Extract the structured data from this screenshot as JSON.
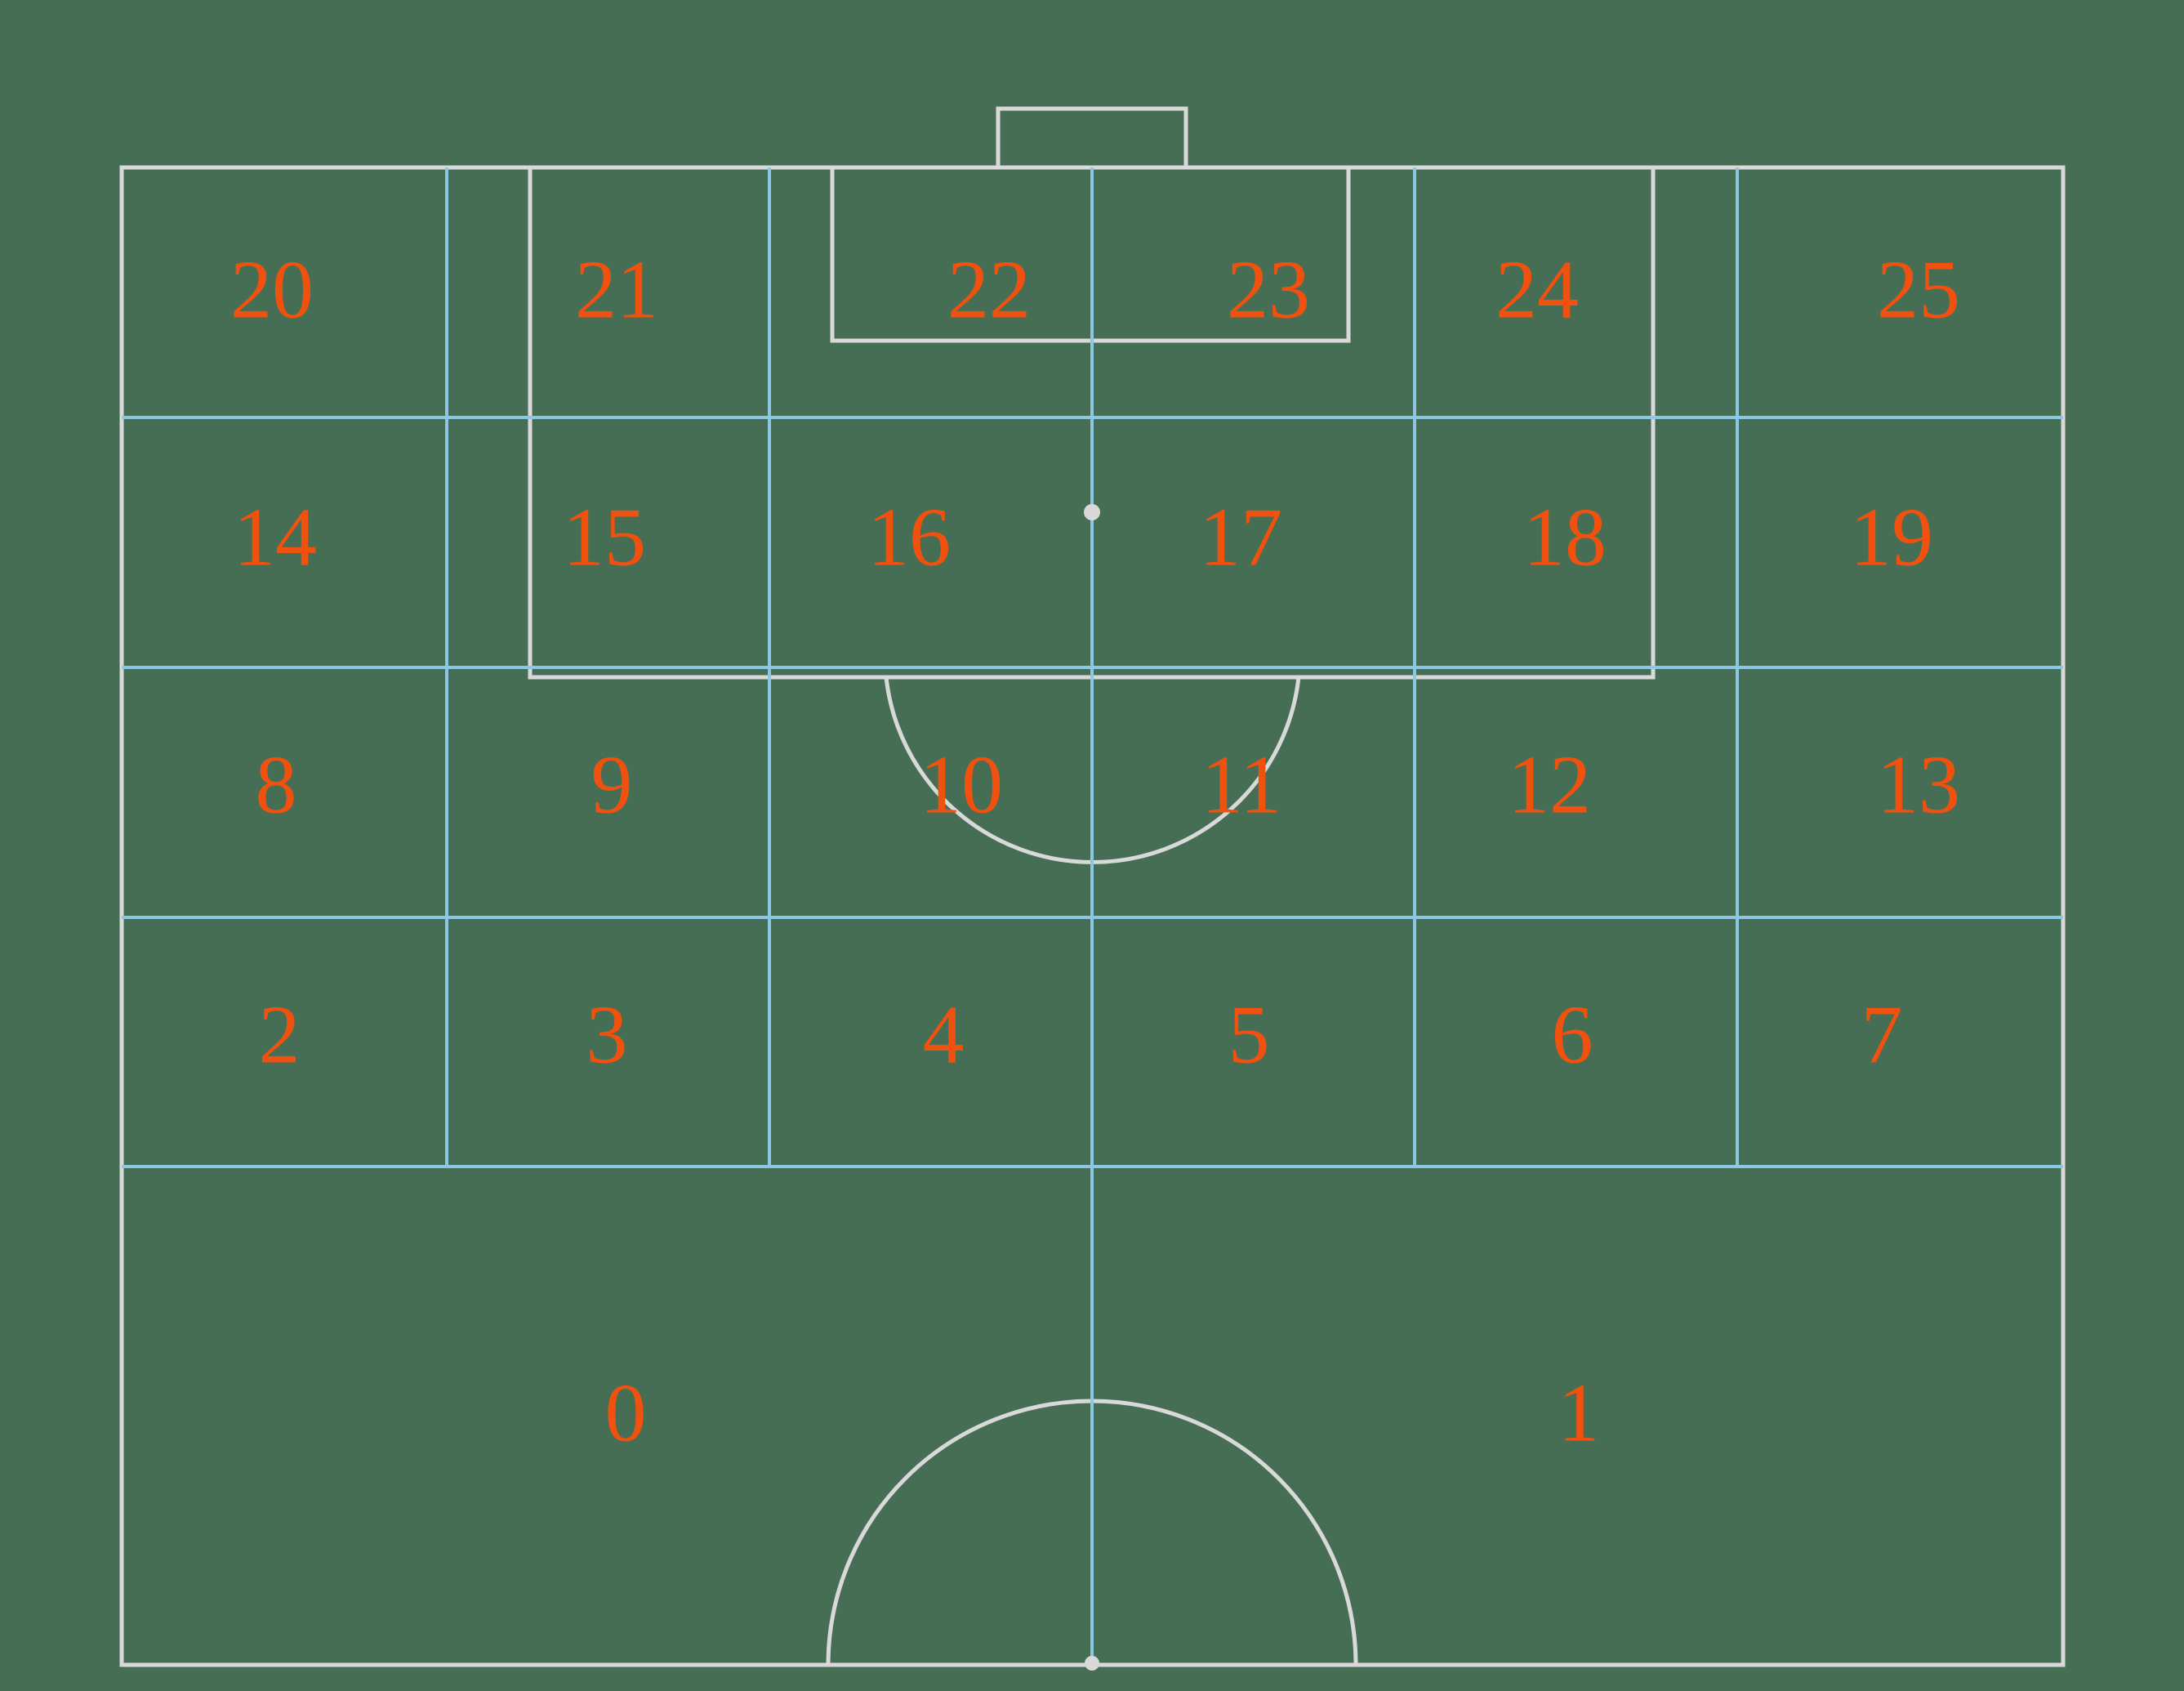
{
  "zones": [
    {
      "id": "zone-0",
      "label": "0"
    },
    {
      "id": "zone-1",
      "label": "1"
    },
    {
      "id": "zone-2",
      "label": "2"
    },
    {
      "id": "zone-3",
      "label": "3"
    },
    {
      "id": "zone-4",
      "label": "4"
    },
    {
      "id": "zone-5",
      "label": "5"
    },
    {
      "id": "zone-6",
      "label": "6"
    },
    {
      "id": "zone-7",
      "label": "7"
    },
    {
      "id": "zone-8",
      "label": "8"
    },
    {
      "id": "zone-9",
      "label": "9"
    },
    {
      "id": "zone-10",
      "label": "10"
    },
    {
      "id": "zone-11",
      "label": "11"
    },
    {
      "id": "zone-12",
      "label": "12"
    },
    {
      "id": "zone-13",
      "label": "13"
    },
    {
      "id": "zone-14",
      "label": "14"
    },
    {
      "id": "zone-15",
      "label": "15"
    },
    {
      "id": "zone-16",
      "label": "16"
    },
    {
      "id": "zone-17",
      "label": "17"
    },
    {
      "id": "zone-18",
      "label": "18"
    },
    {
      "id": "zone-19",
      "label": "19"
    },
    {
      "id": "zone-20",
      "label": "20"
    },
    {
      "id": "zone-21",
      "label": "21"
    },
    {
      "id": "zone-22",
      "label": "22"
    },
    {
      "id": "zone-23",
      "label": "23"
    },
    {
      "id": "zone-24",
      "label": "24"
    },
    {
      "id": "zone-25",
      "label": "25"
    }
  ],
  "colors": {
    "pitch_background": "#466e55",
    "pitch_lines": "#d9d9d9",
    "zone_grid_lines": "#8cc8e4",
    "zone_labels": "#f0510f"
  }
}
